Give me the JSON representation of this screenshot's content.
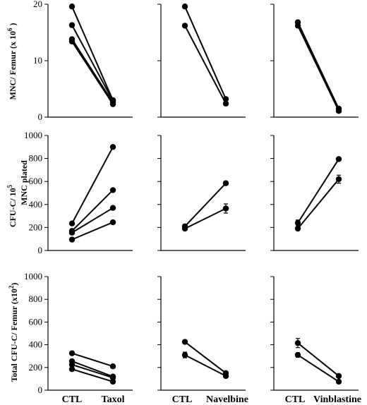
{
  "chart_data": [
    {
      "type": "line",
      "row": 0,
      "col": 0,
      "x": [
        "CTL",
        "Taxol"
      ],
      "ylim": [
        0,
        20
      ],
      "yticks": [
        0,
        10,
        20
      ],
      "series": [
        {
          "values": [
            19.6,
            3.0
          ]
        },
        {
          "values": [
            16.3,
            2.9
          ]
        },
        {
          "values": [
            13.8,
            2.6
          ]
        },
        {
          "values": [
            13.4,
            2.3
          ]
        }
      ]
    },
    {
      "type": "line",
      "row": 0,
      "col": 1,
      "x": [
        "CTL",
        "Navelbine"
      ],
      "ylim": [
        0,
        20
      ],
      "series": [
        {
          "values": [
            19.6,
            3.2
          ]
        },
        {
          "values": [
            16.2,
            2.4
          ]
        }
      ]
    },
    {
      "type": "line",
      "row": 0,
      "col": 2,
      "x": [
        "CTL",
        "Vinblastine"
      ],
      "ylim": [
        0,
        20
      ],
      "series": [
        {
          "values": [
            16.8,
            1.5
          ]
        },
        {
          "values": [
            16.2,
            1.1
          ]
        }
      ]
    },
    {
      "type": "line",
      "row": 1,
      "col": 0,
      "x": [
        "CTL",
        "Taxol"
      ],
      "ylim": [
        0,
        1000
      ],
      "yticks": [
        0,
        200,
        400,
        600,
        800,
        1000
      ],
      "series": [
        {
          "values": [
            235,
            900
          ]
        },
        {
          "values": [
            170,
            525
          ]
        },
        {
          "values": [
            155,
            370
          ]
        },
        {
          "values": [
            95,
            245
          ]
        }
      ]
    },
    {
      "type": "line",
      "row": 1,
      "col": 1,
      "x": [
        "CTL",
        "Navelbine"
      ],
      "ylim": [
        0,
        1000
      ],
      "series": [
        {
          "values": [
            210,
            585
          ]
        },
        {
          "values": [
            190,
            365
          ],
          "err": [
            0,
            40
          ]
        }
      ]
    },
    {
      "type": "line",
      "row": 1,
      "col": 2,
      "x": [
        "CTL",
        "Vinblastine"
      ],
      "ylim": [
        0,
        1000
      ],
      "series": [
        {
          "values": [
            240,
            795
          ],
          "err": [
            25,
            0
          ]
        },
        {
          "values": [
            190,
            620
          ],
          "err": [
            0,
            35
          ]
        }
      ]
    },
    {
      "type": "line",
      "row": 2,
      "col": 0,
      "x": [
        "CTL",
        "Taxol"
      ],
      "ylim": [
        0,
        1000
      ],
      "yticks": [
        0,
        200,
        400,
        600,
        800,
        1000
      ],
      "series": [
        {
          "values": [
            325,
            210
          ]
        },
        {
          "values": [
            255,
            120
          ]
        },
        {
          "values": [
            225,
            110
          ]
        },
        {
          "values": [
            185,
            75
          ]
        }
      ]
    },
    {
      "type": "line",
      "row": 2,
      "col": 1,
      "x": [
        "CTL",
        "Navelbine"
      ],
      "ylim": [
        0,
        1000
      ],
      "series": [
        {
          "values": [
            425,
            150
          ]
        },
        {
          "values": [
            310,
            125
          ],
          "err": [
            25,
            0
          ]
        }
      ]
    },
    {
      "type": "line",
      "row": 2,
      "col": 2,
      "x": [
        "CTL",
        "Vinblastine"
      ],
      "ylim": [
        0,
        1000
      ],
      "series": [
        {
          "values": [
            415,
            125
          ],
          "err": [
            40,
            0
          ]
        },
        {
          "values": [
            310,
            75
          ],
          "err": [
            20,
            0
          ]
        }
      ]
    }
  ],
  "ylabels": {
    "row0_main": "MNC/ Femur (x 10",
    "row0_exp": "6",
    "row0_tail": " )",
    "row1_line1": "CFU-C/ 10",
    "row1_line1_exp": "5",
    "row1_line2": "MNC plated",
    "row2_main": "Total CFU-C/ Femur (x10",
    "row2_exp": "2",
    "row2_tail": ")"
  },
  "xlabels": {
    "col0_ctl": "CTL",
    "col0_drug": "Taxol",
    "col1_ctl": "CTL",
    "col1_drug": "Navelbine",
    "col2_ctl": "CTL",
    "col2_drug": "Vinblastine"
  }
}
